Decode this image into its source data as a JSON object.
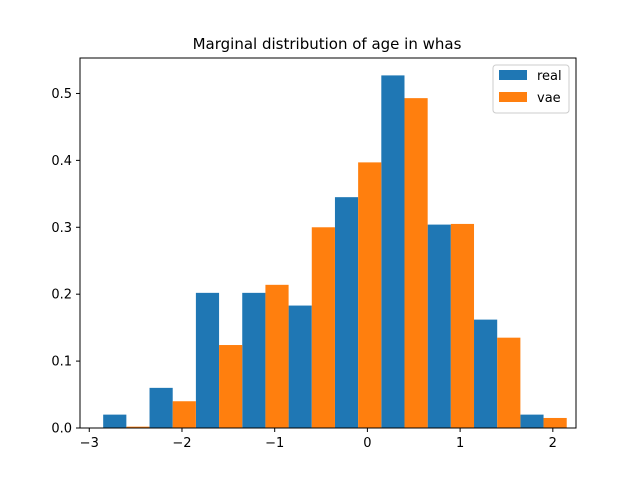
{
  "chart_data": {
    "type": "bar",
    "title": "Marginal distribution of age in whas",
    "xlabel": "",
    "ylabel": "",
    "xlim": [
      -3.1,
      2.25
    ],
    "ylim": [
      0,
      0.553
    ],
    "xticks": [
      -3,
      -2,
      -1,
      0,
      1,
      2
    ],
    "xtick_labels": [
      "−3",
      "−2",
      "−1",
      "0",
      "1",
      "2"
    ],
    "yticks": [
      0.0,
      0.1,
      0.2,
      0.3,
      0.4,
      0.5
    ],
    "ytick_labels": [
      "0.0",
      "0.1",
      "0.2",
      "0.3",
      "0.4",
      "0.5"
    ],
    "grid": false,
    "legend_position": "top-right",
    "bin_edges": [
      -2.85,
      -2.35,
      -1.85,
      -1.35,
      -0.85,
      -0.35,
      0.15,
      0.65,
      1.15,
      1.65,
      2.15
    ],
    "series": [
      {
        "name": "real",
        "color": "#1f77b4",
        "values": [
          0.02,
          0.06,
          0.202,
          0.202,
          0.183,
          0.345,
          0.527,
          0.304,
          0.162,
          0.02
        ]
      },
      {
        "name": "vae",
        "color": "#ff7f0e",
        "values": [
          0.002,
          0.04,
          0.124,
          0.214,
          0.3,
          0.397,
          0.493,
          0.305,
          0.135,
          0.015
        ]
      }
    ]
  }
}
